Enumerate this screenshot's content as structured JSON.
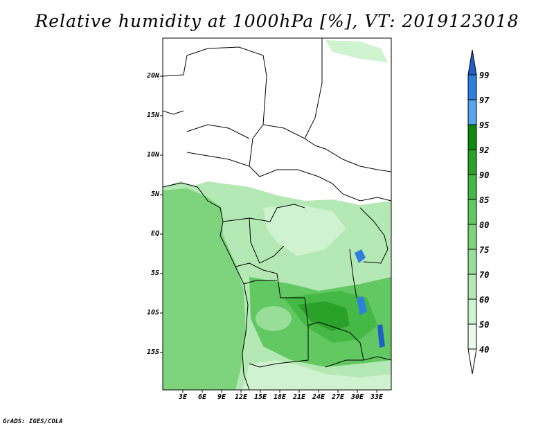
{
  "title": "Relative humidity at 1000hPa [%], VT: 2019123018",
  "y_ticks": [
    "20N",
    "15N",
    "10N",
    "5N",
    "EQ",
    "5S",
    "10S",
    "15S"
  ],
  "x_ticks": [
    "3E",
    "6E",
    "9E",
    "12E",
    "15E",
    "18E",
    "21E",
    "24E",
    "27E",
    "30E",
    "33E"
  ],
  "colorbar": {
    "labels": [
      "99",
      "97",
      "95",
      "92",
      "90",
      "85",
      "80",
      "75",
      "70",
      "60",
      "50",
      "40"
    ],
    "colors": [
      "#1e5fc8",
      "#2f7fe0",
      "#56a6f0",
      "#0e8a0e",
      "#2aa22a",
      "#45b845",
      "#62c862",
      "#7dd47d",
      "#98de98",
      "#b4e8b4",
      "#cff2cf",
      "#e9fae9",
      "#ffffff"
    ]
  },
  "credit": "GrADS: IGES/COLA"
}
